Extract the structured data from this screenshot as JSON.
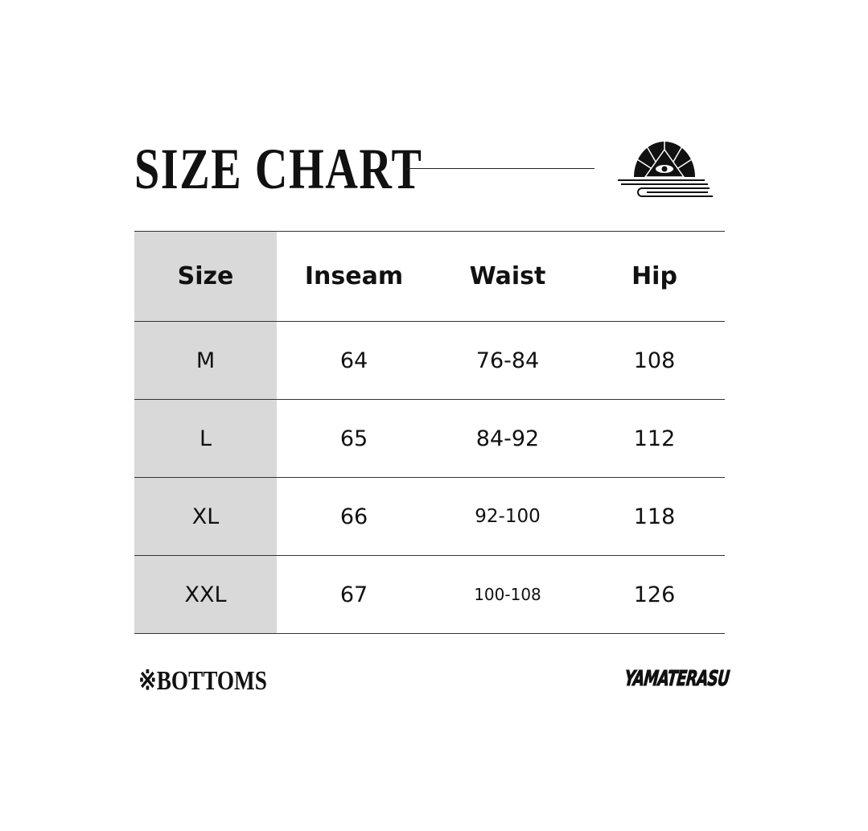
{
  "title": "SIZE CHART",
  "emblem": {
    "icon": "rising-sun-eye-emblem-icon"
  },
  "table": {
    "headers": [
      "Size",
      "Inseam",
      "Waist",
      "Hip"
    ],
    "rows": [
      [
        "M",
        "64",
        "76-84",
        "108"
      ],
      [
        "L",
        "65",
        "84-92",
        "112"
      ],
      [
        "XL",
        "66",
        "92-100",
        "118"
      ],
      [
        "XXL",
        "67",
        "100-108",
        "126"
      ]
    ],
    "size_column_color": "#d9d9d9"
  },
  "footer": {
    "category": "※BOTTOMS",
    "brand_logo_text": "YAMATERASU"
  }
}
